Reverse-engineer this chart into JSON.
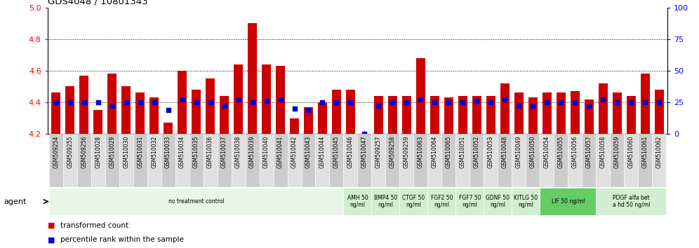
{
  "title": "GDS4048 / 10801343",
  "samples": [
    "GSM509254",
    "GSM509255",
    "GSM509256",
    "GSM510028",
    "GSM510029",
    "GSM510030",
    "GSM510031",
    "GSM510032",
    "GSM510033",
    "GSM510034",
    "GSM510035",
    "GSM510036",
    "GSM510037",
    "GSM510038",
    "GSM510039",
    "GSM510040",
    "GSM510041",
    "GSM510042",
    "GSM510043",
    "GSM510044",
    "GSM510045",
    "GSM510046",
    "GSM510047",
    "GSM509257",
    "GSM509258",
    "GSM509259",
    "GSM510063",
    "GSM510064",
    "GSM510065",
    "GSM510051",
    "GSM510052",
    "GSM510053",
    "GSM510048",
    "GSM510049",
    "GSM510050",
    "GSM510054",
    "GSM510055",
    "GSM510056",
    "GSM510057",
    "GSM510058",
    "GSM510059",
    "GSM510060",
    "GSM510061",
    "GSM510062"
  ],
  "bar_values": [
    4.46,
    4.5,
    4.57,
    4.35,
    4.58,
    4.5,
    4.46,
    4.43,
    4.27,
    4.6,
    4.48,
    4.55,
    4.44,
    4.64,
    4.9,
    4.64,
    4.63,
    4.3,
    4.37,
    4.4,
    4.48,
    4.48,
    4.2,
    4.44,
    4.44,
    4.44,
    4.68,
    4.44,
    4.43,
    4.44,
    4.44,
    4.44,
    4.52,
    4.46,
    4.43,
    4.46,
    4.46,
    4.47,
    4.42,
    4.52,
    4.46,
    4.44,
    4.58,
    4.48
  ],
  "percentile_values": [
    4.4,
    4.4,
    4.4,
    4.4,
    4.38,
    4.4,
    4.4,
    4.4,
    4.35,
    4.42,
    4.4,
    4.4,
    4.38,
    4.42,
    4.4,
    4.41,
    4.42,
    4.36,
    4.35,
    4.4,
    4.4,
    4.4,
    4.2,
    4.38,
    4.4,
    4.4,
    4.42,
    4.4,
    4.4,
    4.4,
    4.41,
    4.4,
    4.42,
    4.38,
    4.38,
    4.4,
    4.4,
    4.4,
    4.38,
    4.42,
    4.4,
    4.4,
    4.4,
    4.4
  ],
  "bar_color": "#cc0000",
  "dot_color": "#0000cc",
  "ymin": 4.2,
  "ymax": 5.0,
  "yticks_left": [
    4.2,
    4.4,
    4.6,
    4.8,
    5.0
  ],
  "yticks_right": [
    0,
    25,
    50,
    75,
    100
  ],
  "grid_values": [
    4.4,
    4.6,
    4.8
  ],
  "agent_groups": [
    {
      "label": "no treatment control",
      "start": 0,
      "end": 21,
      "color": "#e8f5e8"
    },
    {
      "label": "AMH 50\nng/ml",
      "start": 21,
      "end": 23,
      "color": "#d0eed0"
    },
    {
      "label": "BMP4 50\nng/ml",
      "start": 23,
      "end": 25,
      "color": "#d0eed0"
    },
    {
      "label": "CTGF 50\nng/ml",
      "start": 25,
      "end": 27,
      "color": "#d0eed0"
    },
    {
      "label": "FGF2 50\nng/ml",
      "start": 27,
      "end": 29,
      "color": "#d0eed0"
    },
    {
      "label": "FGF7 50\nng/ml",
      "start": 29,
      "end": 31,
      "color": "#d0eed0"
    },
    {
      "label": "GDNF 50\nng/ml",
      "start": 31,
      "end": 33,
      "color": "#d0eed0"
    },
    {
      "label": "KITLG 50\nng/ml",
      "start": 33,
      "end": 35,
      "color": "#d0eed0"
    },
    {
      "label": "LIF 50 ng/ml",
      "start": 35,
      "end": 39,
      "color": "#66cc66"
    },
    {
      "label": "PDGF alfa bet\na hd 50 ng/ml",
      "start": 39,
      "end": 44,
      "color": "#d0eed0"
    }
  ],
  "legend_items": [
    {
      "label": "transformed count",
      "color": "#cc0000"
    },
    {
      "label": "percentile rank within the sample",
      "color": "#0000cc"
    }
  ],
  "label_bg_even": "#cccccc",
  "label_bg_odd": "#e0e0e0"
}
